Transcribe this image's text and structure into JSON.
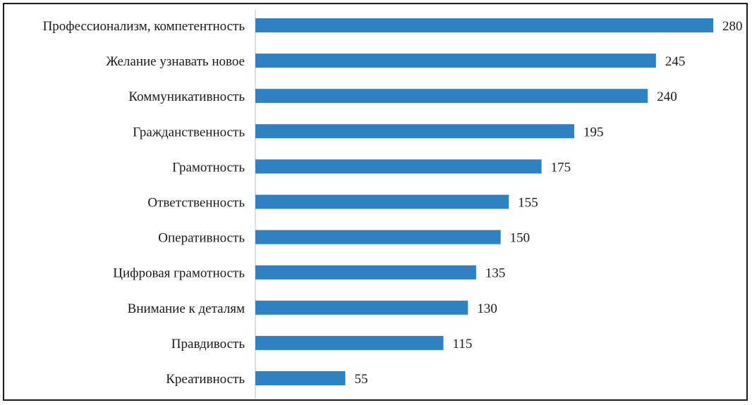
{
  "chart_data": {
    "type": "bar",
    "orientation": "horizontal",
    "categories": [
      "Профессионализм, компетентность",
      "Желание узнавать новое",
      "Коммуникативность",
      "Гражданственность",
      "Грамотность",
      "Ответственность",
      "Оперативность",
      "Цифровая грамотность",
      "Внимание к деталям",
      "Правдивость",
      "Креативность"
    ],
    "values": [
      280,
      245,
      240,
      195,
      175,
      155,
      150,
      135,
      130,
      115,
      55
    ],
    "title": "",
    "xlabel": "",
    "ylabel": "",
    "xlim": [
      0,
      280
    ],
    "grid": false,
    "legend": "none",
    "data_labels": true,
    "bar_color": "#2e81c3",
    "axis_color": "#bfbfbf"
  }
}
